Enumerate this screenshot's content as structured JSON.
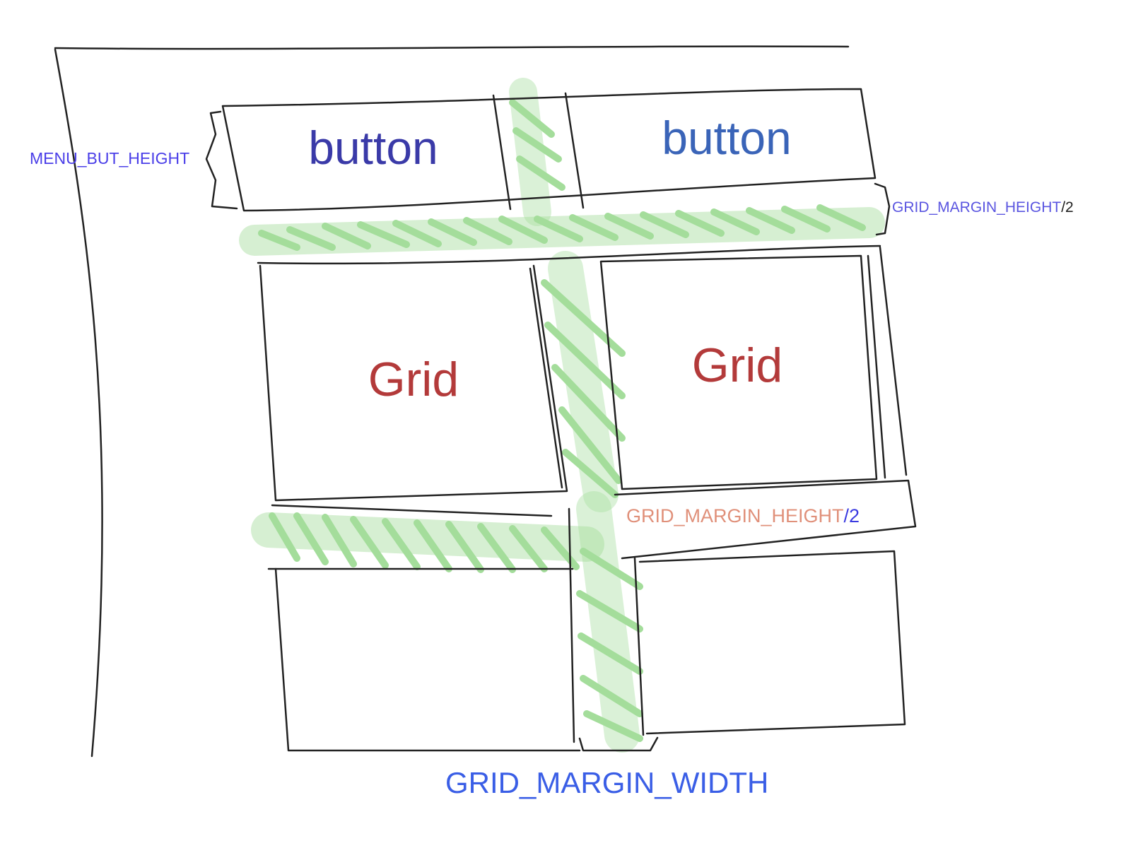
{
  "diagram": {
    "buttons": [
      {
        "label": "button",
        "color": "#3a3aa8"
      },
      {
        "label": "button",
        "color": "#3a64b8"
      }
    ],
    "grids": [
      {
        "label": "Grid",
        "color": "#b33a3a"
      },
      {
        "label": "Grid",
        "color": "#b33a3a"
      },
      {
        "label": ""
      },
      {
        "label": ""
      }
    ],
    "annotations": {
      "menu_but_height": {
        "text": "MENU_BUT_HEIGHT",
        "color": "#4a3ee8"
      },
      "grid_margin_height_top": {
        "text": "GRID_MARGIN_HEIGHT",
        "suffix": "/2",
        "color": "#5a55e0",
        "suffix_color": "#222222"
      },
      "grid_margin_height_mid": {
        "text": "GRID_MARGIN_HEIGHT",
        "suffix": "/2",
        "color": "#e0907a",
        "suffix_color": "#3a3ae0"
      },
      "grid_margin_width": {
        "text": "GRID_MARGIN_WIDTH",
        "color": "#3a5ee6"
      }
    },
    "colors": {
      "stroke": "#222222",
      "margin_hatch": "#59c24a"
    }
  }
}
